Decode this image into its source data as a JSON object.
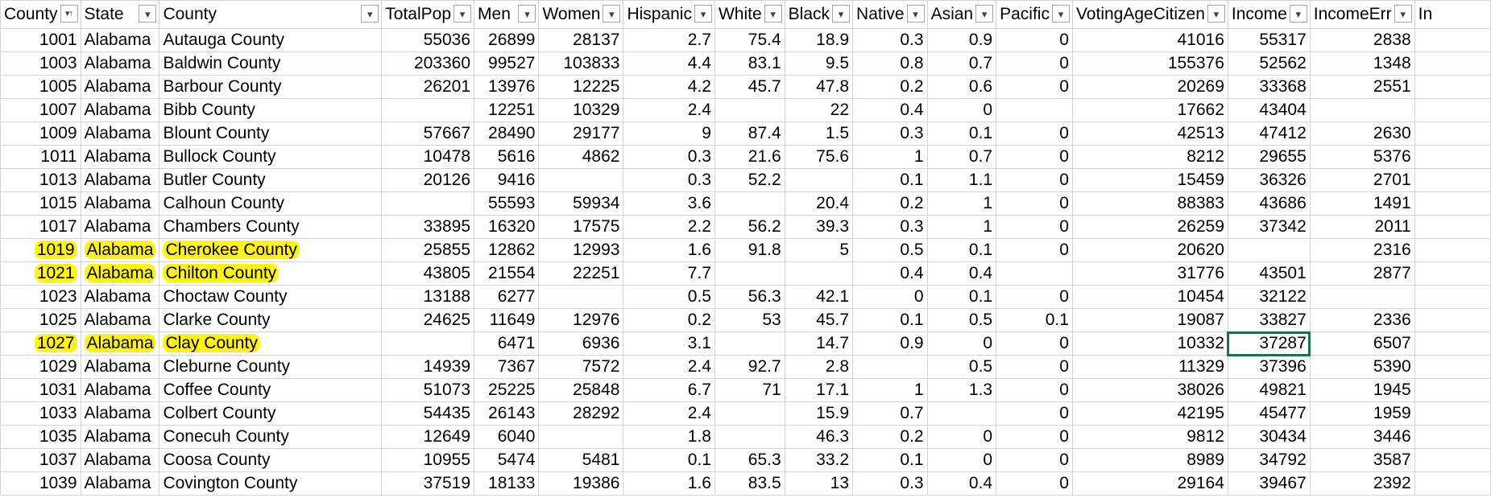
{
  "columns": [
    "County",
    "State",
    "County",
    "TotalPop",
    "Men",
    "Women",
    "Hispanic",
    "White",
    "Black",
    "Native",
    "Asian",
    "Pacific",
    "VotingAgeCitizen",
    "Income",
    "IncomeErr",
    "In"
  ],
  "column_types": [
    "num",
    "txt",
    "txt",
    "num",
    "num",
    "num",
    "num",
    "num",
    "num",
    "num",
    "num",
    "num",
    "num",
    "num",
    "num",
    "txt"
  ],
  "sorted_column_index": 0,
  "highlighted_rows": [
    9,
    10,
    13
  ],
  "selected_cell": {
    "row": 13,
    "column": "Income"
  },
  "rows": [
    [
      "1001",
      "Alabama",
      "Autauga County",
      "55036",
      "26899",
      "28137",
      "2.7",
      "75.4",
      "18.9",
      "0.3",
      "0.9",
      "0",
      "41016",
      "55317",
      "2838",
      ""
    ],
    [
      "1003",
      "Alabama",
      "Baldwin County",
      "203360",
      "99527",
      "103833",
      "4.4",
      "83.1",
      "9.5",
      "0.8",
      "0.7",
      "0",
      "155376",
      "52562",
      "1348",
      ""
    ],
    [
      "1005",
      "Alabama",
      "Barbour County",
      "26201",
      "13976",
      "12225",
      "4.2",
      "45.7",
      "47.8",
      "0.2",
      "0.6",
      "0",
      "20269",
      "33368",
      "2551",
      ""
    ],
    [
      "1007",
      "Alabama",
      "Bibb County",
      "",
      "12251",
      "10329",
      "2.4",
      "",
      "22",
      "0.4",
      "0",
      "",
      "17662",
      "43404",
      "",
      ""
    ],
    [
      "1009",
      "Alabama",
      "Blount County",
      "57667",
      "28490",
      "29177",
      "9",
      "87.4",
      "1.5",
      "0.3",
      "0.1",
      "0",
      "42513",
      "47412",
      "2630",
      ""
    ],
    [
      "1011",
      "Alabama",
      "Bullock County",
      "10478",
      "5616",
      "4862",
      "0.3",
      "21.6",
      "75.6",
      "1",
      "0.7",
      "0",
      "8212",
      "29655",
      "5376",
      ""
    ],
    [
      "1013",
      "Alabama",
      "Butler County",
      "20126",
      "9416",
      "",
      "0.3",
      "52.2",
      "",
      "0.1",
      "1.1",
      "0",
      "15459",
      "36326",
      "2701",
      ""
    ],
    [
      "1015",
      "Alabama",
      "Calhoun County",
      "",
      "55593",
      "59934",
      "3.6",
      "",
      "20.4",
      "0.2",
      "1",
      "0",
      "88383",
      "43686",
      "1491",
      ""
    ],
    [
      "1017",
      "Alabama",
      "Chambers County",
      "33895",
      "16320",
      "17575",
      "2.2",
      "56.2",
      "39.3",
      "0.3",
      "1",
      "0",
      "26259",
      "37342",
      "2011",
      ""
    ],
    [
      "1019",
      "Alabama",
      "Cherokee County",
      "25855",
      "12862",
      "12993",
      "1.6",
      "91.8",
      "5",
      "0.5",
      "0.1",
      "0",
      "20620",
      "",
      "2316",
      ""
    ],
    [
      "1021",
      "Alabama",
      "Chilton County",
      "43805",
      "21554",
      "22251",
      "7.7",
      "",
      "",
      "0.4",
      "0.4",
      "",
      "31776",
      "43501",
      "2877",
      ""
    ],
    [
      "1023",
      "Alabama",
      "Choctaw County",
      "13188",
      "6277",
      "",
      "0.5",
      "56.3",
      "42.1",
      "0",
      "0.1",
      "0",
      "10454",
      "32122",
      "",
      ""
    ],
    [
      "1025",
      "Alabama",
      "Clarke County",
      "24625",
      "11649",
      "12976",
      "0.2",
      "53",
      "45.7",
      "0.1",
      "0.5",
      "0.1",
      "19087",
      "33827",
      "2336",
      ""
    ],
    [
      "1027",
      "Alabama",
      "Clay County",
      "",
      "6471",
      "6936",
      "3.1",
      "",
      "14.7",
      "0.9",
      "0",
      "0",
      "10332",
      "37287",
      "6507",
      ""
    ],
    [
      "1029",
      "Alabama",
      "Cleburne County",
      "14939",
      "7367",
      "7572",
      "2.4",
      "92.7",
      "2.8",
      "",
      "0.5",
      "0",
      "11329",
      "37396",
      "5390",
      ""
    ],
    [
      "1031",
      "Alabama",
      "Coffee County",
      "51073",
      "25225",
      "25848",
      "6.7",
      "71",
      "17.1",
      "1",
      "1.3",
      "0",
      "38026",
      "49821",
      "1945",
      ""
    ],
    [
      "1033",
      "Alabama",
      "Colbert County",
      "54435",
      "26143",
      "28292",
      "2.4",
      "",
      "15.9",
      "0.7",
      "",
      "0",
      "42195",
      "45477",
      "1959",
      ""
    ],
    [
      "1035",
      "Alabama",
      "Conecuh County",
      "12649",
      "6040",
      "",
      "1.8",
      "",
      "46.3",
      "0.2",
      "0",
      "0",
      "9812",
      "30434",
      "3446",
      ""
    ],
    [
      "1037",
      "Alabama",
      "Coosa County",
      "10955",
      "5474",
      "5481",
      "0.1",
      "65.3",
      "33.2",
      "0.1",
      "0",
      "0",
      "8989",
      "34792",
      "3587",
      ""
    ],
    [
      "1039",
      "Alabama",
      "Covington County",
      "37519",
      "18133",
      "19386",
      "1.6",
      "83.5",
      "13",
      "0.3",
      "0.4",
      "0",
      "29164",
      "39467",
      "2392",
      ""
    ]
  ],
  "colors": {
    "highlight": "#fff31a",
    "selection": "#1e7145",
    "gridline": "#d4d4d4"
  },
  "icons": {
    "filter": "chevron-down-icon",
    "sort_filter": "sort-ascending-filter-icon"
  }
}
